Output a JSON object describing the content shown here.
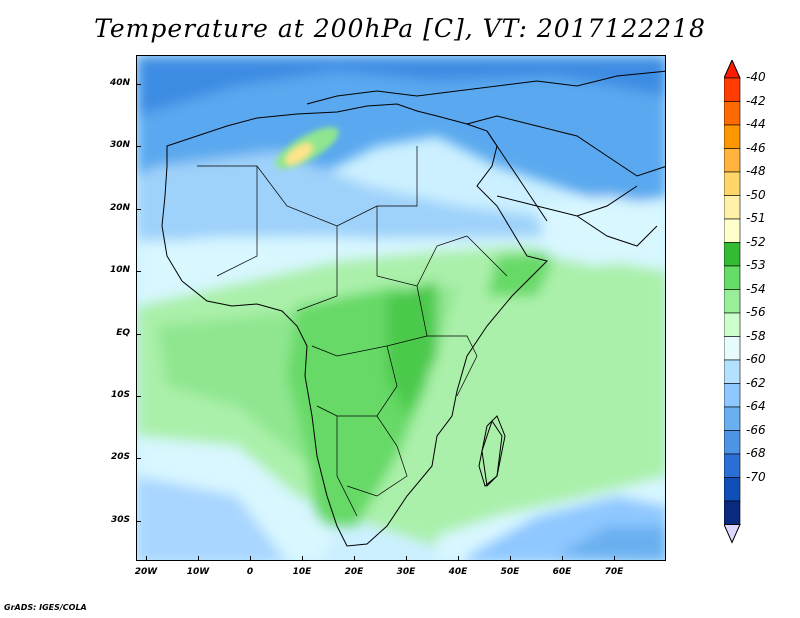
{
  "title": "Temperature at 200hPa [C], VT: 2017122218",
  "footer": "GrADS: IGES/COLA",
  "lat_ticks": [
    "40N",
    "30N",
    "20N",
    "10N",
    "EQ",
    "10S",
    "20S",
    "30S"
  ],
  "lon_ticks": [
    "20W",
    "10W",
    "0",
    "10E",
    "20E",
    "30E",
    "40E",
    "50E",
    "60E",
    "70E"
  ],
  "colorbar": {
    "labels": [
      "-40",
      "-42",
      "-44",
      "-46",
      "-48",
      "-50",
      "-51",
      "-52",
      "-53",
      "-54",
      "-56",
      "-58",
      "-60",
      "-62",
      "-64",
      "-66",
      "-68",
      "-70"
    ],
    "colors": [
      "#ff3d00",
      "#ff6a00",
      "#ff9800",
      "#ffb23c",
      "#ffd66a",
      "#fff2a8",
      "#ffffcc",
      "#33bb33",
      "#66dd66",
      "#99ee99",
      "#ccffcc",
      "#e6fbfb",
      "#b3e1ff",
      "#8fc8ff",
      "#6ab0f0",
      "#4d94e6",
      "#2a6fd6",
      "#114fb8",
      "#0a2a80"
    ],
    "top_arrow_color": "#ff1a00",
    "bottom_arrow_color": "#ddd6ff"
  }
}
